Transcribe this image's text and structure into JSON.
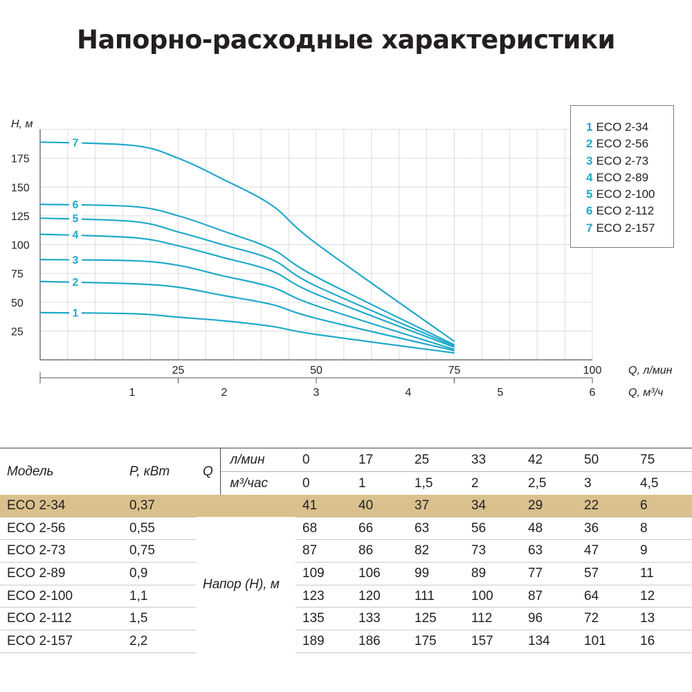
{
  "title": "Напорно-расходные характеристики",
  "chart_data": {
    "type": "line",
    "ylabel": "H, м",
    "xlabel": "Q, л/мин",
    "x2label": "Q, м³/ч",
    "yticks": [
      25,
      50,
      75,
      100,
      125,
      150,
      175
    ],
    "xticks": [
      25,
      50,
      75,
      100
    ],
    "x2ticks": [
      1,
      2,
      3,
      4,
      5,
      6
    ],
    "xlim": [
      0,
      100
    ],
    "ylim": [
      0,
      200
    ],
    "grid": true,
    "legend_position": "top-right",
    "x": [
      0,
      17,
      25,
      33,
      42,
      50,
      75
    ],
    "series": [
      {
        "label": "1",
        "name": "ECO 2-34",
        "values": [
          41,
          40,
          37,
          34,
          29,
          22,
          6
        ]
      },
      {
        "label": "2",
        "name": "ECO 2-56",
        "values": [
          68,
          66,
          63,
          56,
          48,
          36,
          8
        ]
      },
      {
        "label": "3",
        "name": "ECO 2-73",
        "values": [
          87,
          86,
          82,
          73,
          63,
          47,
          9
        ]
      },
      {
        "label": "4",
        "name": "ECO 2-89",
        "values": [
          109,
          106,
          99,
          89,
          77,
          57,
          11
        ]
      },
      {
        "label": "5",
        "name": "ECO 2-100",
        "values": [
          123,
          120,
          111,
          100,
          87,
          64,
          12
        ]
      },
      {
        "label": "6",
        "name": "ECO 2-112",
        "values": [
          135,
          133,
          125,
          112,
          96,
          72,
          13
        ]
      },
      {
        "label": "7",
        "name": "ECO 2-157",
        "values": [
          189,
          186,
          175,
          157,
          134,
          101,
          16
        ]
      }
    ],
    "line_color": "#1fa9c9"
  },
  "legend": {
    "items": [
      {
        "num": "1",
        "name": "ECO 2-34"
      },
      {
        "num": "2",
        "name": "ECO 2-56"
      },
      {
        "num": "3",
        "name": "ECO 2-73"
      },
      {
        "num": "4",
        "name": "ECO 2-89"
      },
      {
        "num": "5",
        "name": "ECO 2-100"
      },
      {
        "num": "6",
        "name": "ECO 2-112"
      },
      {
        "num": "7",
        "name": "ECO 2-157"
      }
    ]
  },
  "table": {
    "model_header": "Модель",
    "power_header": "P, кВт",
    "q_header": "Q",
    "unit_lmin": "л/мин",
    "unit_m3": "м³/час",
    "lmin_values": [
      "0",
      "17",
      "25",
      "33",
      "42",
      "50",
      "75"
    ],
    "m3_values": [
      "0",
      "1",
      "1,5",
      "2",
      "2,5",
      "3",
      "4,5"
    ],
    "head_label": "Напор (H), м",
    "rows": [
      {
        "model": "ECO 2-34",
        "power": "0,37",
        "values": [
          "41",
          "40",
          "37",
          "34",
          "29",
          "22",
          "6"
        ]
      },
      {
        "model": "ECO 2-56",
        "power": "0,55",
        "values": [
          "68",
          "66",
          "63",
          "56",
          "48",
          "36",
          "8"
        ]
      },
      {
        "model": "ECO 2-73",
        "power": "0,75",
        "values": [
          "87",
          "86",
          "82",
          "73",
          "63",
          "47",
          "9"
        ]
      },
      {
        "model": "ECO 2-89",
        "power": "0,9",
        "values": [
          "109",
          "106",
          "99",
          "89",
          "77",
          "57",
          "11"
        ]
      },
      {
        "model": "ECO 2-100",
        "power": "1,1",
        "values": [
          "123",
          "120",
          "111",
          "100",
          "87",
          "64",
          "12"
        ]
      },
      {
        "model": "ECO 2-112",
        "power": "1,5",
        "values": [
          "135",
          "133",
          "125",
          "112",
          "96",
          "72",
          "13"
        ]
      },
      {
        "model": "ECO 2-157",
        "power": "2,2",
        "values": [
          "189",
          "186",
          "175",
          "157",
          "134",
          "101",
          "16"
        ]
      }
    ],
    "highlight_color": "#d9c08d"
  }
}
